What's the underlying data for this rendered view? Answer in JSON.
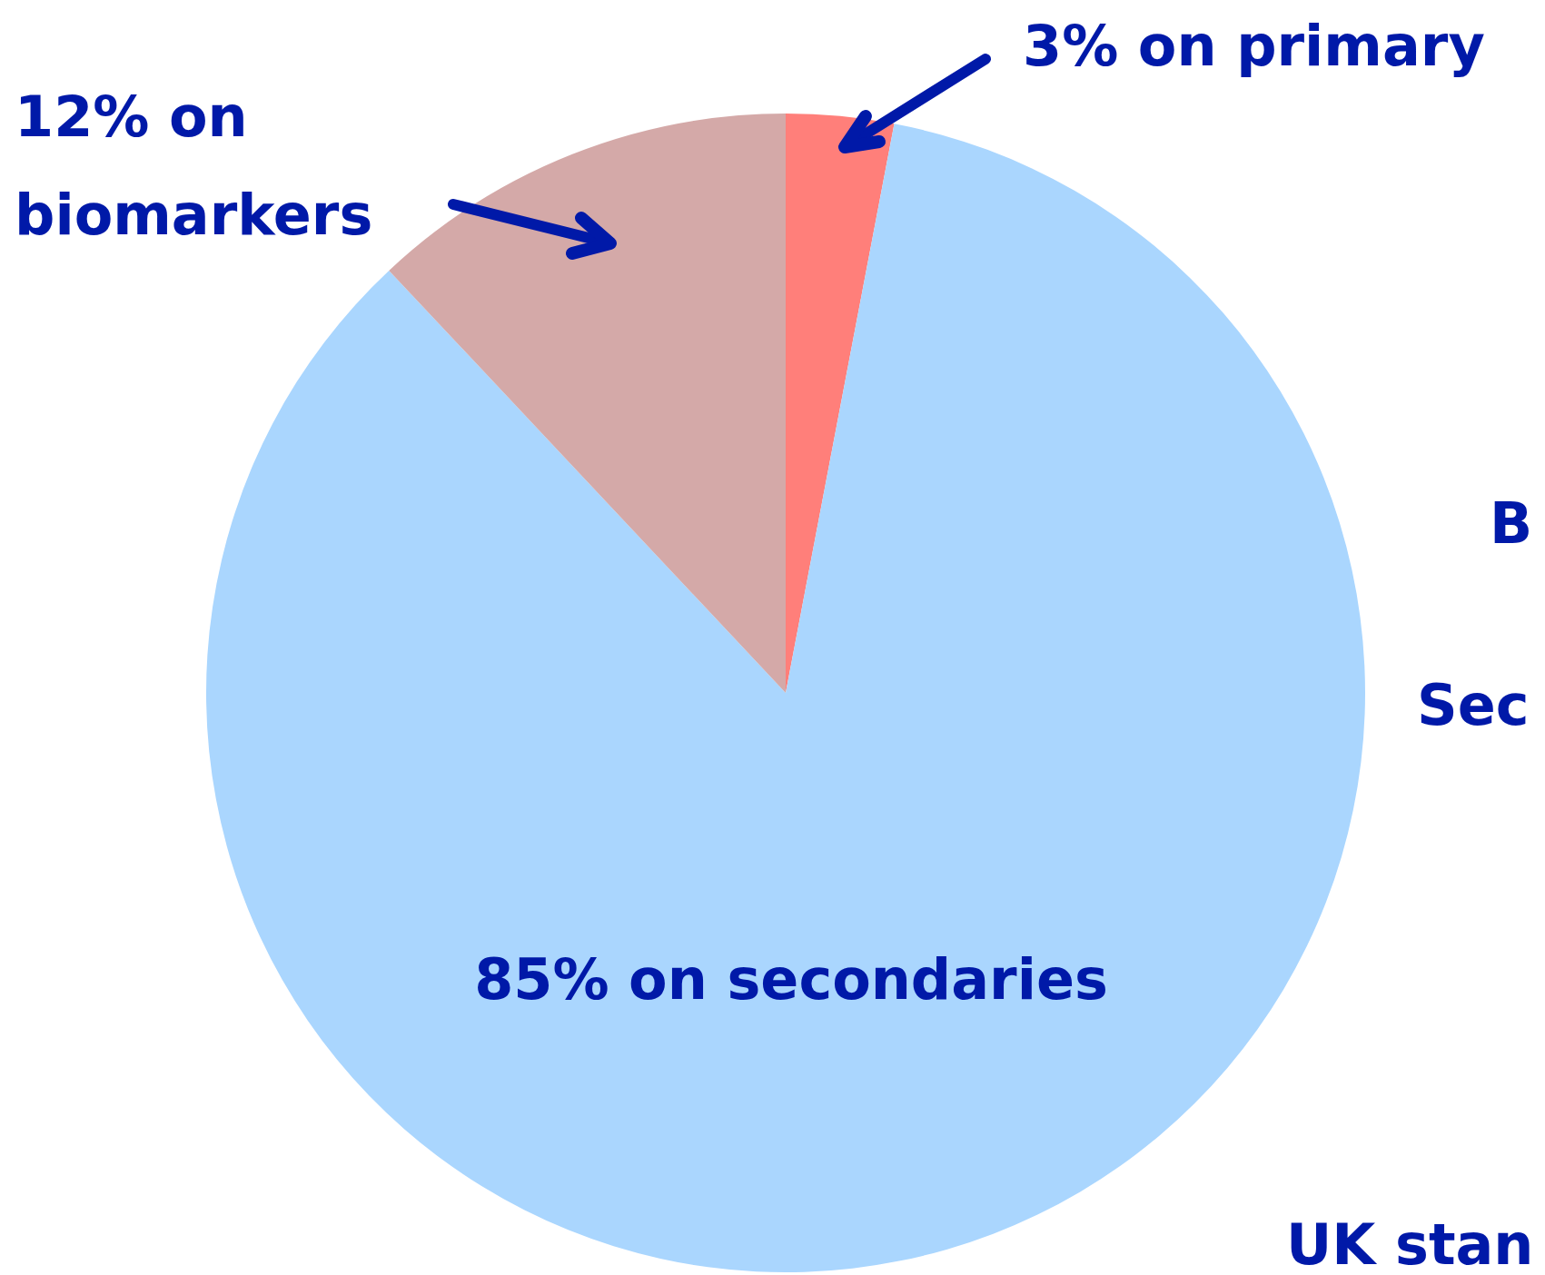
{
  "chart_data": {
    "type": "pie",
    "categories": [
      "3% on primary",
      "85% on secondaries",
      "12% on biomarkers"
    ],
    "values": [
      3,
      85,
      12
    ],
    "colors": [
      "#ff7f7a",
      "#aad6fe",
      "#d4a9a8"
    ],
    "legend": false,
    "annotations": [
      "B",
      "Sec",
      "UK stan"
    ]
  }
}
